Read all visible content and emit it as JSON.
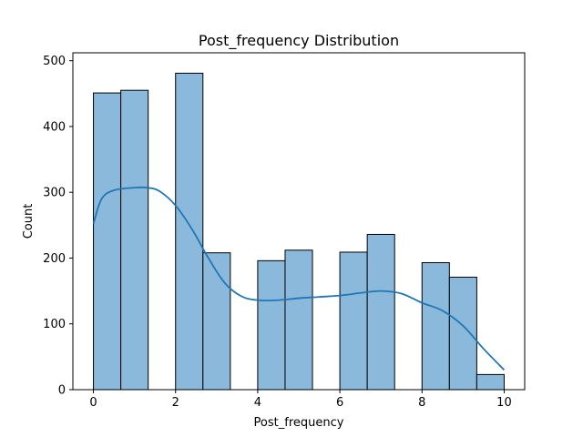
{
  "chart_data": {
    "type": "bar",
    "title": "Post_frequency Distribution",
    "xlabel": "Post_frequency",
    "ylabel": "Count",
    "xlim": [
      -0.5,
      10.5
    ],
    "ylim": [
      0,
      512
    ],
    "x_ticks": [
      0,
      2,
      4,
      6,
      8,
      10
    ],
    "y_ticks": [
      0,
      100,
      200,
      300,
      400,
      500
    ],
    "grid": false,
    "bin_edges": [
      0,
      0.6667,
      1.3333,
      2,
      2.6667,
      3.3333,
      4,
      4.6667,
      5.3333,
      6,
      6.6667,
      7.3333,
      8,
      8.6667,
      9.3333,
      10
    ],
    "values": [
      451,
      455,
      0,
      481,
      208,
      0,
      196,
      212,
      0,
      209,
      236,
      0,
      193,
      171,
      23
    ],
    "kde": {
      "x": [
        0,
        0.2,
        0.5,
        1.0,
        1.3,
        1.6,
        2.0,
        2.4,
        2.8,
        3.2,
        3.6,
        4.0,
        4.5,
        5.0,
        5.5,
        6.0,
        6.5,
        7.0,
        7.5,
        8.0,
        8.5,
        9.0,
        9.5,
        10.0
      ],
      "y": [
        252,
        290,
        303,
        307,
        307,
        302,
        280,
        244,
        200,
        162,
        142,
        136,
        136,
        139,
        141,
        143,
        147,
        150,
        146,
        132,
        120,
        97,
        62,
        30
      ]
    },
    "colors": {
      "bar_fill": "#8bb9db",
      "bar_edge": "#000000",
      "kde_line": "#1f77b4"
    }
  }
}
